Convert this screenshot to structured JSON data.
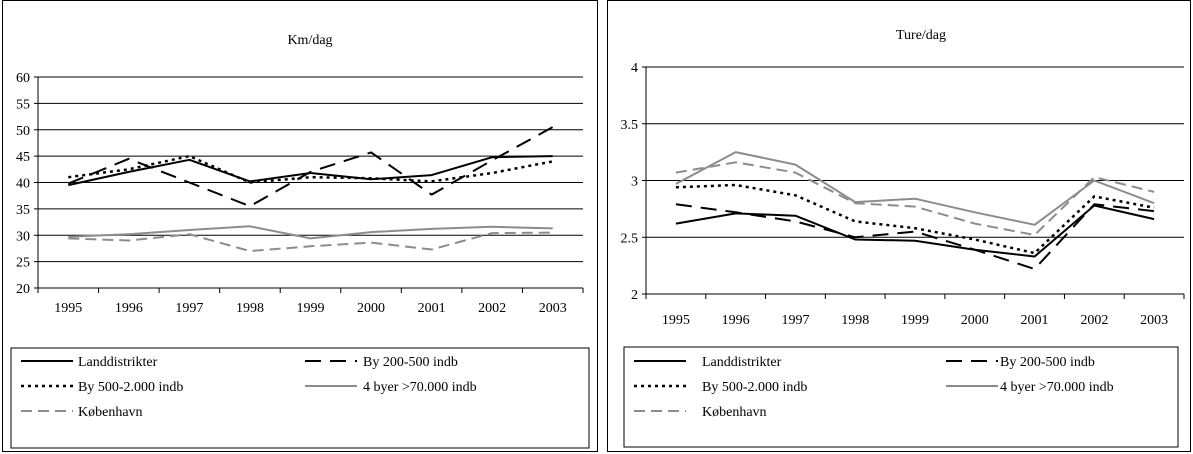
{
  "chart_data": [
    {
      "type": "line",
      "title": "Km/dag",
      "xlabel": "",
      "ylabel": "",
      "x": [
        "1995",
        "1996",
        "1997",
        "1998",
        "1999",
        "2000",
        "2001",
        "2002",
        "2003"
      ],
      "ylim": [
        20,
        60
      ],
      "yticks": [
        "20",
        "25",
        "30",
        "35",
        "40",
        "45",
        "50",
        "55",
        "60"
      ],
      "grid": "horizontal",
      "legend_position": "bottom",
      "series": [
        {
          "name": "Landdistrikter",
          "values": [
            39.5,
            42.0,
            44.3,
            40.2,
            41.8,
            40.6,
            41.4,
            44.8,
            45.0
          ],
          "color": "#000000",
          "style": "solid"
        },
        {
          "name": "By 200-500 indb",
          "values": [
            39.8,
            44.5,
            40.0,
            35.5,
            42.0,
            45.7,
            37.7,
            44.2,
            50.5
          ],
          "color": "#000000",
          "style": "longdash"
        },
        {
          "name": "By 500-2.000 indb",
          "values": [
            41.0,
            42.5,
            45.0,
            40.0,
            41.0,
            40.8,
            40.2,
            41.8,
            44.0
          ],
          "color": "#000000",
          "style": "dotted"
        },
        {
          "name": "4 byer >70.000 indb",
          "values": [
            29.7,
            30.2,
            31.0,
            31.7,
            29.4,
            30.6,
            31.2,
            31.6,
            31.3
          ],
          "color": "#8c8c8c",
          "style": "solid"
        },
        {
          "name": "København",
          "values": [
            29.4,
            29.0,
            30.2,
            27.0,
            27.9,
            28.6,
            27.3,
            30.4,
            30.5
          ],
          "color": "#8c8c8c",
          "style": "dash"
        }
      ]
    },
    {
      "type": "line",
      "title": "Ture/dag",
      "xlabel": "",
      "ylabel": "",
      "x": [
        "1995",
        "1996",
        "1997",
        "1998",
        "1999",
        "2000",
        "2001",
        "2002",
        "2003"
      ],
      "ylim": [
        2,
        4
      ],
      "yticks": [
        "2",
        "2.5",
        "3",
        "3.5",
        "4"
      ],
      "grid": "horizontal",
      "legend_position": "bottom",
      "series": [
        {
          "name": "Landdistrikter",
          "values": [
            2.62,
            2.71,
            2.69,
            2.48,
            2.47,
            2.39,
            2.33,
            2.78,
            2.66
          ],
          "color": "#000000",
          "style": "solid"
        },
        {
          "name": "By 200-500 indb",
          "values": [
            2.79,
            2.72,
            2.64,
            2.5,
            2.55,
            2.39,
            2.22,
            2.79,
            2.73
          ],
          "color": "#000000",
          "style": "longdash"
        },
        {
          "name": "By 500-2.000 indb",
          "values": [
            2.94,
            2.96,
            2.87,
            2.64,
            2.58,
            2.48,
            2.36,
            2.86,
            2.76
          ],
          "color": "#000000",
          "style": "dotted"
        },
        {
          "name": "4 byer >70.000 indb",
          "values": [
            2.97,
            3.25,
            3.14,
            2.81,
            2.84,
            2.72,
            2.61,
            3.0,
            2.8
          ],
          "color": "#8c8c8c",
          "style": "solid"
        },
        {
          "name": "København",
          "values": [
            3.07,
            3.16,
            3.07,
            2.8,
            2.77,
            2.62,
            2.52,
            3.03,
            2.9
          ],
          "color": "#8c8c8c",
          "style": "dash"
        }
      ]
    }
  ]
}
